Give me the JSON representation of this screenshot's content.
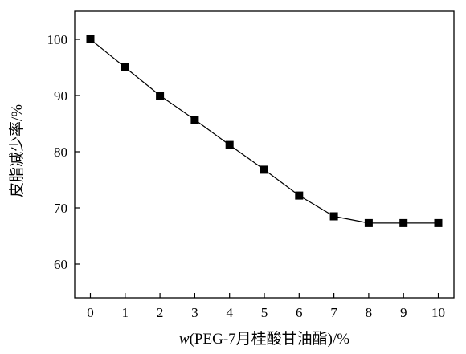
{
  "chart_data": {
    "type": "line",
    "title": "",
    "xlabel_prefix": "w",
    "xlabel_rest": "(PEG-7月桂酸甘油酯)/%",
    "ylabel": "皮脂减少率/%",
    "x": [
      0,
      1,
      2,
      3,
      4,
      5,
      6,
      7,
      8,
      9,
      10
    ],
    "series": [
      {
        "values": [
          100,
          95,
          90,
          85.7,
          81.2,
          76.8,
          72.2,
          68.5,
          67.3,
          67.3,
          67.3
        ],
        "color": "#000000",
        "marker": "square"
      }
    ],
    "xticks": [
      0,
      1,
      2,
      3,
      4,
      5,
      6,
      7,
      8,
      9,
      10
    ],
    "yticks": [
      60,
      70,
      80,
      90,
      100
    ],
    "xlim": [
      -0.45,
      10.45
    ],
    "ylim": [
      54,
      105
    ],
    "grid": false,
    "legend": "none"
  }
}
